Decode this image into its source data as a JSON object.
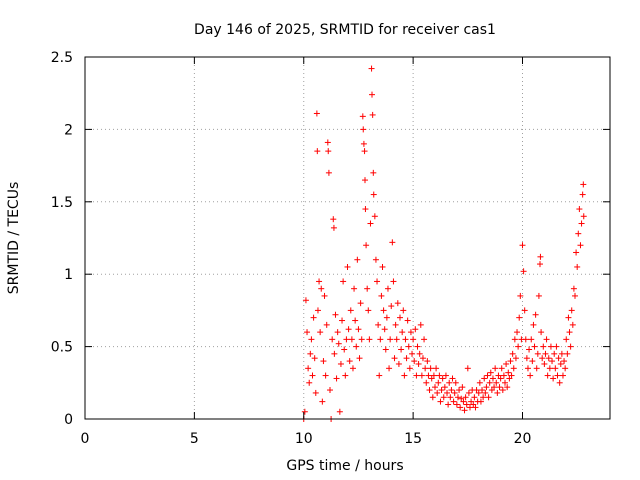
{
  "chart_data": {
    "type": "scatter",
    "title": "Day 146 of 2025, SRMTID for receiver cas1",
    "xlabel": "GPS time / hours",
    "ylabel": "SRMTID / TECUs",
    "xlim": [
      0,
      24
    ],
    "ylim": [
      0,
      2.5
    ],
    "xticks": [
      0,
      5,
      10,
      15,
      20
    ],
    "yticks": [
      0,
      0.5,
      1,
      1.5,
      2,
      2.5
    ],
    "xtick_labels": [
      "0",
      "5",
      "10",
      "15",
      "20"
    ],
    "ytick_labels": [
      "0",
      "0.5",
      "1",
      "1.5",
      "2",
      "2.5"
    ],
    "marker": "+",
    "color": "#ff0000",
    "grid": true,
    "series": [
      {
        "name": "SRMTID",
        "points": [
          [
            10.0,
            0.0
          ],
          [
            10.05,
            0.05
          ],
          [
            10.1,
            0.82
          ],
          [
            10.15,
            0.6
          ],
          [
            10.2,
            0.35
          ],
          [
            10.25,
            0.25
          ],
          [
            10.3,
            0.45
          ],
          [
            10.35,
            0.55
          ],
          [
            10.4,
            0.3
          ],
          [
            10.45,
            0.7
          ],
          [
            10.5,
            0.42
          ],
          [
            10.55,
            0.18
          ],
          [
            10.6,
            2.11
          ],
          [
            10.62,
            1.85
          ],
          [
            10.65,
            0.75
          ],
          [
            10.7,
            0.95
          ],
          [
            10.75,
            0.6
          ],
          [
            10.8,
            0.9
          ],
          [
            10.85,
            0.12
          ],
          [
            10.9,
            0.4
          ],
          [
            10.95,
            0.85
          ],
          [
            11.0,
            0.3
          ],
          [
            11.05,
            0.65
          ],
          [
            11.1,
            1.91
          ],
          [
            11.12,
            1.85
          ],
          [
            11.15,
            1.7
          ],
          [
            11.2,
            0.2
          ],
          [
            11.25,
            0.0
          ],
          [
            11.3,
            0.55
          ],
          [
            11.35,
            1.38
          ],
          [
            11.38,
            1.32
          ],
          [
            11.4,
            0.45
          ],
          [
            11.45,
            0.72
          ],
          [
            11.5,
            0.28
          ],
          [
            11.55,
            0.6
          ],
          [
            11.6,
            0.52
          ],
          [
            11.65,
            0.05
          ],
          [
            11.7,
            0.38
          ],
          [
            11.75,
            0.68
          ],
          [
            11.8,
            0.95
          ],
          [
            11.85,
            0.48
          ],
          [
            11.9,
            0.3
          ],
          [
            11.95,
            0.55
          ],
          [
            12.0,
            1.05
          ],
          [
            12.05,
            0.62
          ],
          [
            12.1,
            0.4
          ],
          [
            12.15,
            0.75
          ],
          [
            12.2,
            0.55
          ],
          [
            12.25,
            0.35
          ],
          [
            12.3,
            0.9
          ],
          [
            12.35,
            0.68
          ],
          [
            12.4,
            0.5
          ],
          [
            12.45,
            1.1
          ],
          [
            12.5,
            0.62
          ],
          [
            12.55,
            0.42
          ],
          [
            12.6,
            0.8
          ],
          [
            12.65,
            0.55
          ],
          [
            12.7,
            2.09
          ],
          [
            12.72,
            2.0
          ],
          [
            12.75,
            1.9
          ],
          [
            12.78,
            1.85
          ],
          [
            12.8,
            1.65
          ],
          [
            12.82,
            1.45
          ],
          [
            12.85,
            1.2
          ],
          [
            12.9,
            0.9
          ],
          [
            12.95,
            0.75
          ],
          [
            13.0,
            0.55
          ],
          [
            13.05,
            1.35
          ],
          [
            13.1,
            2.42
          ],
          [
            13.12,
            2.24
          ],
          [
            13.15,
            2.1
          ],
          [
            13.18,
            1.7
          ],
          [
            13.2,
            1.55
          ],
          [
            13.25,
            1.4
          ],
          [
            13.3,
            1.1
          ],
          [
            13.35,
            0.95
          ],
          [
            13.4,
            0.65
          ],
          [
            13.45,
            0.3
          ],
          [
            13.5,
            0.55
          ],
          [
            13.55,
            0.85
          ],
          [
            13.6,
            1.05
          ],
          [
            13.65,
            0.75
          ],
          [
            13.7,
            0.62
          ],
          [
            13.75,
            0.48
          ],
          [
            13.8,
            0.7
          ],
          [
            13.85,
            0.9
          ],
          [
            13.9,
            0.35
          ],
          [
            13.95,
            0.55
          ],
          [
            14.0,
            0.78
          ],
          [
            14.05,
            1.22
          ],
          [
            14.1,
            0.95
          ],
          [
            14.15,
            0.42
          ],
          [
            14.2,
            0.65
          ],
          [
            14.25,
            0.55
          ],
          [
            14.3,
            0.8
          ],
          [
            14.35,
            0.38
          ],
          [
            14.4,
            0.7
          ],
          [
            14.45,
            0.48
          ],
          [
            14.5,
            0.6
          ],
          [
            14.55,
            0.75
          ],
          [
            14.6,
            0.3
          ],
          [
            14.65,
            0.55
          ],
          [
            14.7,
            0.42
          ],
          [
            14.75,
            0.68
          ],
          [
            14.8,
            0.5
          ],
          [
            14.85,
            0.35
          ],
          [
            14.9,
            0.6
          ],
          [
            14.95,
            0.45
          ],
          [
            15.0,
            0.55
          ],
          [
            15.05,
            0.4
          ],
          [
            15.1,
            0.62
          ],
          [
            15.15,
            0.3
          ],
          [
            15.2,
            0.5
          ],
          [
            15.25,
            0.38
          ],
          [
            15.3,
            0.45
          ],
          [
            15.35,
            0.65
          ],
          [
            15.4,
            0.3
          ],
          [
            15.45,
            0.42
          ],
          [
            15.5,
            0.55
          ],
          [
            15.55,
            0.35
          ],
          [
            15.6,
            0.25
          ],
          [
            15.65,
            0.4
          ],
          [
            15.7,
            0.3
          ],
          [
            15.75,
            0.2
          ],
          [
            15.8,
            0.35
          ],
          [
            15.85,
            0.28
          ],
          [
            15.9,
            0.15
          ],
          [
            15.95,
            0.3
          ],
          [
            16.0,
            0.22
          ],
          [
            16.05,
            0.35
          ],
          [
            16.1,
            0.18
          ],
          [
            16.15,
            0.25
          ],
          [
            16.2,
            0.3
          ],
          [
            16.25,
            0.12
          ],
          [
            16.3,
            0.2
          ],
          [
            16.35,
            0.28
          ],
          [
            16.4,
            0.15
          ],
          [
            16.45,
            0.22
          ],
          [
            16.5,
            0.3
          ],
          [
            16.55,
            0.18
          ],
          [
            16.6,
            0.1
          ],
          [
            16.65,
            0.25
          ],
          [
            16.7,
            0.15
          ],
          [
            16.75,
            0.2
          ],
          [
            16.8,
            0.28
          ],
          [
            16.85,
            0.12
          ],
          [
            16.9,
            0.18
          ],
          [
            16.95,
            0.25
          ],
          [
            17.0,
            0.1
          ],
          [
            17.05,
            0.15
          ],
          [
            17.1,
            0.2
          ],
          [
            17.15,
            0.08
          ],
          [
            17.2,
            0.14
          ],
          [
            17.25,
            0.22
          ],
          [
            17.3,
            0.12
          ],
          [
            17.35,
            0.06
          ],
          [
            17.4,
            0.15
          ],
          [
            17.45,
            0.1
          ],
          [
            17.5,
            0.35
          ],
          [
            17.55,
            0.18
          ],
          [
            17.6,
            0.08
          ],
          [
            17.65,
            0.12
          ],
          [
            17.7,
            0.2
          ],
          [
            17.75,
            0.1
          ],
          [
            17.8,
            0.15
          ],
          [
            17.85,
            0.08
          ],
          [
            17.9,
            0.2
          ],
          [
            17.95,
            0.12
          ],
          [
            18.0,
            0.18
          ],
          [
            18.05,
            0.25
          ],
          [
            18.1,
            0.12
          ],
          [
            18.15,
            0.2
          ],
          [
            18.2,
            0.15
          ],
          [
            18.25,
            0.28
          ],
          [
            18.3,
            0.18
          ],
          [
            18.35,
            0.22
          ],
          [
            18.4,
            0.3
          ],
          [
            18.45,
            0.15
          ],
          [
            18.5,
            0.25
          ],
          [
            18.55,
            0.32
          ],
          [
            18.6,
            0.2
          ],
          [
            18.65,
            0.28
          ],
          [
            18.7,
            0.22
          ],
          [
            18.75,
            0.35
          ],
          [
            18.8,
            0.25
          ],
          [
            18.85,
            0.18
          ],
          [
            18.9,
            0.3
          ],
          [
            18.95,
            0.22
          ],
          [
            19.0,
            0.28
          ],
          [
            19.05,
            0.35
          ],
          [
            19.1,
            0.2
          ],
          [
            19.15,
            0.3
          ],
          [
            19.2,
            0.25
          ],
          [
            19.25,
            0.38
          ],
          [
            19.3,
            0.22
          ],
          [
            19.35,
            0.32
          ],
          [
            19.4,
            0.28
          ],
          [
            19.45,
            0.4
          ],
          [
            19.5,
            0.3
          ],
          [
            19.55,
            0.45
          ],
          [
            19.6,
            0.35
          ],
          [
            19.65,
            0.55
          ],
          [
            19.7,
            0.42
          ],
          [
            19.75,
            0.6
          ],
          [
            19.8,
            0.5
          ],
          [
            19.85,
            0.7
          ],
          [
            19.9,
            0.85
          ],
          [
            19.95,
            0.55
          ],
          [
            20.0,
            1.2
          ],
          [
            20.05,
            1.02
          ],
          [
            20.1,
            0.75
          ],
          [
            20.15,
            0.55
          ],
          [
            20.2,
            0.42
          ],
          [
            20.25,
            0.35
          ],
          [
            20.3,
            0.48
          ],
          [
            20.35,
            0.3
          ],
          [
            20.4,
            0.55
          ],
          [
            20.45,
            0.4
          ],
          [
            20.5,
            0.65
          ],
          [
            20.55,
            0.5
          ],
          [
            20.6,
            0.72
          ],
          [
            20.65,
            0.35
          ],
          [
            20.7,
            0.45
          ],
          [
            20.75,
            0.85
          ],
          [
            20.8,
            1.07
          ],
          [
            20.82,
            1.12
          ],
          [
            20.85,
            0.6
          ],
          [
            20.9,
            0.42
          ],
          [
            20.95,
            0.5
          ],
          [
            21.0,
            0.38
          ],
          [
            21.05,
            0.45
          ],
          [
            21.1,
            0.55
          ],
          [
            21.15,
            0.3
          ],
          [
            21.2,
            0.42
          ],
          [
            21.25,
            0.35
          ],
          [
            21.3,
            0.5
          ],
          [
            21.35,
            0.4
          ],
          [
            21.4,
            0.28
          ],
          [
            21.45,
            0.45
          ],
          [
            21.5,
            0.35
          ],
          [
            21.55,
            0.5
          ],
          [
            21.6,
            0.3
          ],
          [
            21.65,
            0.42
          ],
          [
            21.7,
            0.25
          ],
          [
            21.75,
            0.38
          ],
          [
            21.8,
            0.45
          ],
          [
            21.85,
            0.3
          ],
          [
            21.9,
            0.4
          ],
          [
            21.95,
            0.35
          ],
          [
            22.0,
            0.55
          ],
          [
            22.05,
            0.45
          ],
          [
            22.1,
            0.7
          ],
          [
            22.15,
            0.6
          ],
          [
            22.2,
            0.5
          ],
          [
            22.25,
            0.75
          ],
          [
            22.3,
            0.65
          ],
          [
            22.35,
            0.9
          ],
          [
            22.4,
            0.85
          ],
          [
            22.45,
            1.15
          ],
          [
            22.5,
            1.05
          ],
          [
            22.55,
            1.28
          ],
          [
            22.6,
            1.45
          ],
          [
            22.65,
            1.2
          ],
          [
            22.7,
            1.35
          ],
          [
            22.75,
            1.55
          ],
          [
            22.78,
            1.62
          ],
          [
            22.8,
            1.4
          ]
        ]
      }
    ]
  }
}
